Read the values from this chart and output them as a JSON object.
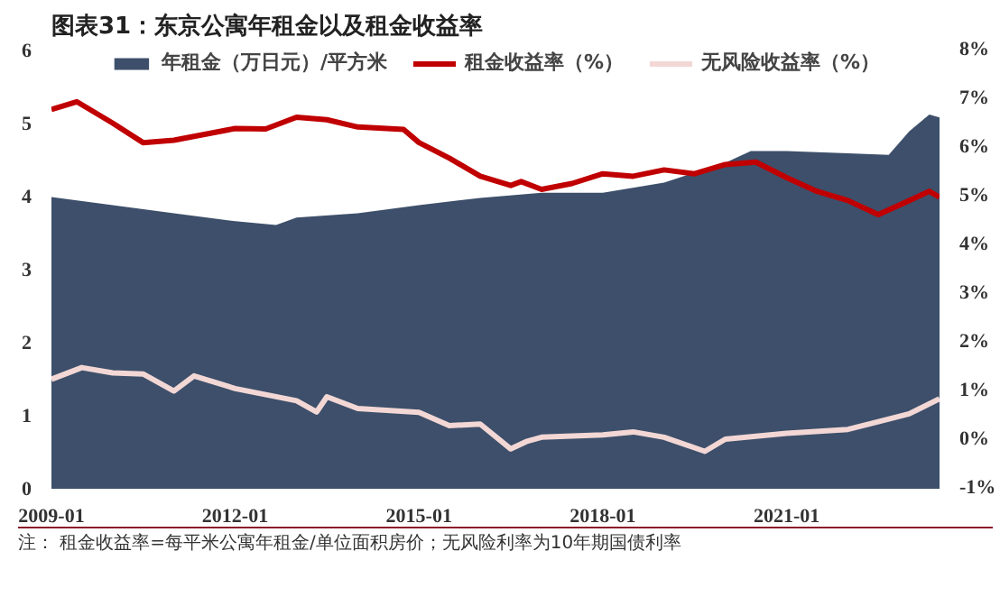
{
  "chart_data": {
    "type": "area",
    "title": "图表31：东京公寓年租金以及租金收益率",
    "x": [
      "2009-01",
      "2010-01",
      "2011-01",
      "2012-01",
      "2012-09",
      "2013-01",
      "2014-01",
      "2015-01",
      "2016-01",
      "2017-01",
      "2018-01",
      "2019-01",
      "2020-01",
      "2020-06",
      "2021-01",
      "2022-01",
      "2022-09",
      "2023-01",
      "2023-05",
      "2023-07"
    ],
    "series": [
      {
        "name": "年租金（万日元）/平方米",
        "color": "#3d4f6a",
        "values": [
          3.98,
          3.87,
          3.76,
          3.65,
          3.6,
          3.7,
          3.76,
          3.87,
          3.97,
          4.04,
          4.04,
          4.18,
          4.45,
          4.61,
          4.61,
          4.58,
          4.56,
          4.88,
          5.11,
          5.07
        ]
      },
      {
        "name": "租金收益率（%）",
        "type": "line",
        "axis": "y2",
        "color": "#c00000",
        "x": [
          "2009-01",
          "2009-06",
          "2010-01",
          "2010-07",
          "2011-01",
          "2012-01",
          "2012-07",
          "2013-01",
          "2013-07",
          "2014-01",
          "2014-10",
          "2015-01",
          "2015-07",
          "2016-01",
          "2016-07",
          "2016-09",
          "2017-01",
          "2017-07",
          "2018-01",
          "2018-07",
          "2019-01",
          "2019-07",
          "2020-01",
          "2020-07",
          "2021-01",
          "2021-07",
          "2022-01",
          "2022-07",
          "2023-01",
          "2023-05",
          "2023-07"
        ],
        "values": [
          6.77,
          6.93,
          6.49,
          6.09,
          6.14,
          6.38,
          6.37,
          6.61,
          6.56,
          6.41,
          6.36,
          6.09,
          5.77,
          5.4,
          5.21,
          5.29,
          5.13,
          5.25,
          5.45,
          5.4,
          5.53,
          5.45,
          5.64,
          5.69,
          5.37,
          5.09,
          4.9,
          4.61,
          4.9,
          5.09,
          4.97
        ]
      },
      {
        "name": "无风险收益率（%）",
        "type": "line",
        "axis": "y2",
        "color": "#f2d7d5",
        "x": [
          "2009-01",
          "2009-07",
          "2010-01",
          "2010-07",
          "2011-01",
          "2011-05",
          "2012-01",
          "2013-01",
          "2013-05",
          "2013-07",
          "2014-01",
          "2015-01",
          "2015-07",
          "2016-01",
          "2016-07",
          "2016-10",
          "2017-01",
          "2018-01",
          "2018-07",
          "2019-01",
          "2019-09",
          "2020-01",
          "2021-01",
          "2022-01",
          "2022-07",
          "2023-01",
          "2023-07"
        ],
        "values": [
          1.23,
          1.47,
          1.36,
          1.34,
          0.99,
          1.3,
          1.04,
          0.79,
          0.56,
          0.87,
          0.63,
          0.55,
          0.28,
          0.31,
          -0.2,
          -0.05,
          0.04,
          0.09,
          0.15,
          0.04,
          -0.25,
          0.0,
          0.12,
          0.2,
          0.36,
          0.52,
          0.83
        ]
      }
    ],
    "xlim": [
      "2009-01",
      "2023-07"
    ],
    "xticks": [
      "2009-01",
      "2012-01",
      "2015-01",
      "2018-01",
      "2021-01"
    ],
    "ylim": [
      0,
      6
    ],
    "yticks": [
      0,
      1,
      2,
      3,
      4,
      5,
      6
    ],
    "y2lim": [
      -1,
      8
    ],
    "y2ticks": [
      {
        "value": -1,
        "label": "-1%"
      },
      {
        "value": 0,
        "label": "0%"
      },
      {
        "value": 1,
        "label": "1%"
      },
      {
        "value": 2,
        "label": "2%"
      },
      {
        "value": 3,
        "label": "3%"
      },
      {
        "value": 4,
        "label": "4%"
      },
      {
        "value": 5,
        "label": "5%"
      },
      {
        "value": 6,
        "label": "6%"
      },
      {
        "value": 7,
        "label": "7%"
      },
      {
        "value": 8,
        "label": "8%"
      }
    ],
    "legend": "top",
    "grid": false,
    "annotations": [
      "注： 租金收益率=每平米公寓年租金/单位面积房价；无风险利率为10年期国债利率"
    ]
  }
}
